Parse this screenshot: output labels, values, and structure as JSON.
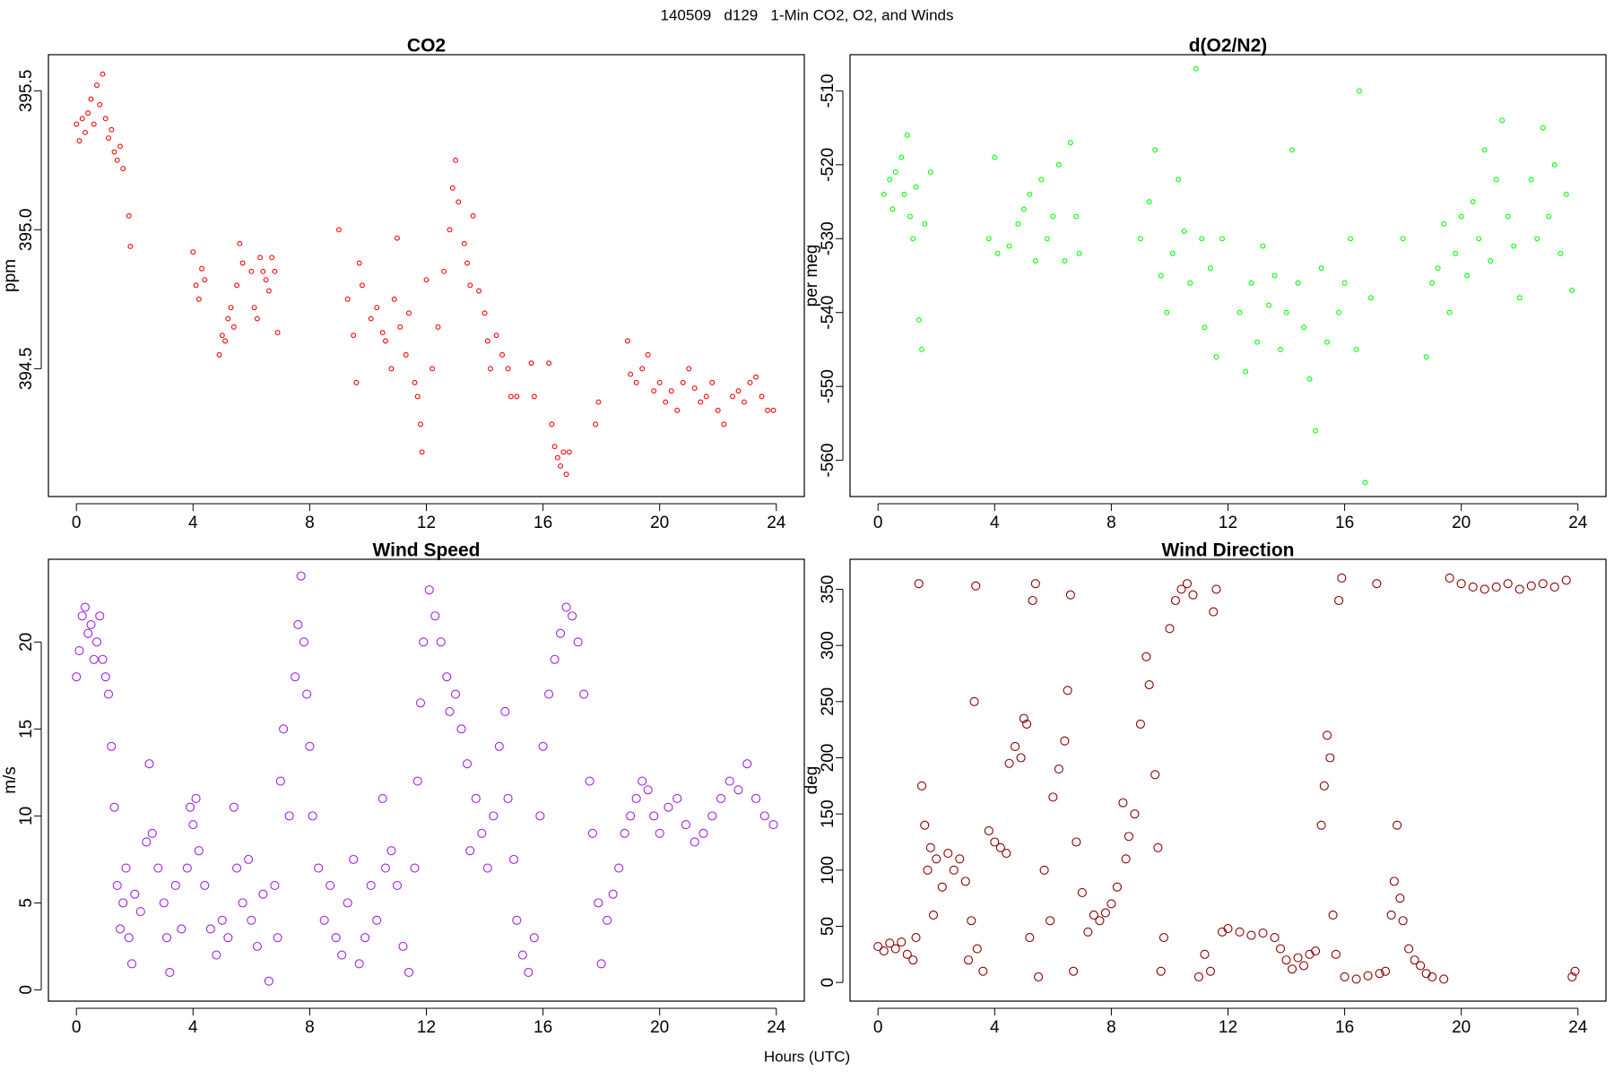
{
  "title": "140509   d129   1-Min CO2, O2, and Winds",
  "x_label": "Hours (UTC)",
  "chart_data": [
    {
      "type": "scatter",
      "title": "CO2",
      "y_label": "ppm",
      "color": "#ff0000",
      "xlim": [
        -0.96,
        24.96
      ],
      "xticks": [
        0,
        4,
        8,
        12,
        16,
        20,
        24
      ],
      "ylim": [
        394.04,
        395.63
      ],
      "yticks": [
        394.5,
        {
          "value": 395,
          "label": "395.0"
        },
        395.5
      ],
      "x": [
        0,
        0.1,
        0.2,
        0.3,
        0.4,
        0.5,
        0.6,
        0.7,
        0.8,
        0.9,
        1.0,
        1.1,
        1.2,
        1.3,
        1.4,
        1.5,
        1.6,
        1.8,
        1.85,
        4.0,
        4.1,
        4.2,
        4.3,
        4.4,
        4.9,
        5.0,
        5.1,
        5.2,
        5.3,
        5.4,
        5.5,
        5.6,
        5.7,
        6.0,
        6.1,
        6.2,
        6.3,
        6.4,
        6.5,
        6.6,
        6.7,
        6.8,
        6.9,
        9.0,
        9.3,
        9.5,
        9.6,
        9.7,
        9.8,
        10.1,
        10.3,
        10.5,
        10.6,
        10.8,
        10.9,
        11.0,
        11.1,
        11.3,
        11.4,
        11.6,
        11.7,
        11.8,
        11.85,
        12.0,
        12.2,
        12.4,
        12.6,
        12.8,
        12.9,
        13.0,
        13.1,
        13.3,
        13.4,
        13.5,
        13.6,
        13.8,
        14.0,
        14.1,
        14.2,
        14.4,
        14.6,
        14.8,
        14.9,
        15.1,
        15.6,
        15.7,
        16.2,
        16.3,
        16.4,
        16.5,
        16.6,
        16.7,
        16.8,
        16.9,
        17.8,
        17.9,
        18.9,
        19.0,
        19.2,
        19.4,
        19.6,
        19.8,
        20.0,
        20.2,
        20.4,
        20.6,
        20.8,
        21.0,
        21.2,
        21.4,
        21.6,
        21.8,
        22.0,
        22.2,
        22.5,
        22.7,
        22.9,
        23.1,
        23.3,
        23.5,
        23.7,
        23.9
      ],
      "values": [
        395.38,
        395.32,
        395.4,
        395.35,
        395.42,
        395.47,
        395.38,
        395.52,
        395.45,
        395.56,
        395.4,
        395.33,
        395.36,
        395.28,
        395.25,
        395.3,
        395.22,
        395.05,
        394.94,
        394.92,
        394.8,
        394.75,
        394.86,
        394.82,
        394.55,
        394.62,
        394.6,
        394.68,
        394.72,
        394.65,
        394.8,
        394.95,
        394.88,
        394.85,
        394.72,
        394.68,
        394.9,
        394.85,
        394.82,
        394.78,
        394.9,
        394.85,
        394.63,
        395.0,
        394.75,
        394.62,
        394.45,
        394.88,
        394.8,
        394.68,
        394.72,
        394.63,
        394.6,
        394.5,
        394.75,
        394.97,
        394.65,
        394.55,
        394.7,
        394.45,
        394.4,
        394.3,
        394.2,
        394.82,
        394.5,
        394.65,
        394.85,
        395.0,
        395.15,
        395.25,
        395.1,
        394.95,
        394.88,
        394.8,
        395.05,
        394.78,
        394.7,
        394.6,
        394.5,
        394.62,
        394.55,
        394.5,
        394.4,
        394.4,
        394.52,
        394.4,
        394.52,
        394.3,
        394.22,
        394.18,
        394.15,
        394.2,
        394.12,
        394.2,
        394.3,
        394.38,
        394.6,
        394.48,
        394.45,
        394.5,
        394.55,
        394.42,
        394.45,
        394.38,
        394.42,
        394.35,
        394.45,
        394.5,
        394.43,
        394.38,
        394.4,
        394.45,
        394.35,
        394.3,
        394.4,
        394.42,
        394.38,
        394.45,
        394.47,
        394.4,
        394.35,
        394.35
      ]
    },
    {
      "type": "scatter",
      "title": "d(O2/N2)",
      "y_label": "per meg",
      "color": "#00ff00",
      "xlim": [
        -0.96,
        24.96
      ],
      "xticks": [
        0,
        4,
        8,
        12,
        16,
        20,
        24
      ],
      "ylim": [
        -564.9,
        -505.1
      ],
      "yticks": [
        -560,
        -550,
        -540,
        -530,
        -520,
        -510
      ],
      "x": [
        0.2,
        0.4,
        0.5,
        0.6,
        0.8,
        0.9,
        1.0,
        1.1,
        1.2,
        1.3,
        1.4,
        1.5,
        1.6,
        1.8,
        3.8,
        4.0,
        4.1,
        4.5,
        4.8,
        5.0,
        5.2,
        5.4,
        5.6,
        5.8,
        6.0,
        6.2,
        6.4,
        6.6,
        6.8,
        6.9,
        9.0,
        9.3,
        9.5,
        9.7,
        9.9,
        10.1,
        10.3,
        10.5,
        10.7,
        10.9,
        11.1,
        11.2,
        11.4,
        11.6,
        11.8,
        12.4,
        12.6,
        12.8,
        13.0,
        13.2,
        13.4,
        13.6,
        13.8,
        14.0,
        14.2,
        14.4,
        14.6,
        14.8,
        15.0,
        15.2,
        15.4,
        15.8,
        16.0,
        16.2,
        16.4,
        16.5,
        16.7,
        16.9,
        18.0,
        18.8,
        19.0,
        19.2,
        19.4,
        19.6,
        19.8,
        20.0,
        20.2,
        20.4,
        20.6,
        20.8,
        21.0,
        21.2,
        21.4,
        21.6,
        21.8,
        22.0,
        22.4,
        22.6,
        22.8,
        23.0,
        23.2,
        23.4,
        23.6,
        23.8
      ],
      "values": [
        -524,
        -522,
        -526,
        -521,
        -519,
        -524,
        -516,
        -527,
        -530,
        -523,
        -541,
        -545,
        -528,
        -521,
        -530,
        -519,
        -532,
        -531,
        -528,
        -526,
        -524,
        -533,
        -522,
        -530,
        -527,
        -520,
        -533,
        -517,
        -527,
        -532,
        -530,
        -525,
        -518,
        -535,
        -540,
        -532,
        -522,
        -529,
        -536,
        -507,
        -530,
        -542,
        -534,
        -546,
        -530,
        -540,
        -548,
        -536,
        -544,
        -531,
        -539,
        -535,
        -545,
        -540,
        -518,
        -536,
        -542,
        -549,
        -556,
        -534,
        -544,
        -540,
        -536,
        -530,
        -545,
        -510,
        -563,
        -538,
        -530,
        -546,
        -536,
        -534,
        -528,
        -540,
        -532,
        -527,
        -535,
        -525,
        -530,
        -518,
        -533,
        -522,
        -514,
        -527,
        -531,
        -538,
        -522,
        -530,
        -515,
        -527,
        -520,
        -532,
        -524,
        -537
      ]
    },
    {
      "type": "scatter",
      "title": "Wind Speed",
      "y_label": "m/s",
      "color": "#a020f0",
      "xlim": [
        -0.96,
        24.96
      ],
      "xticks": [
        0,
        4,
        8,
        12,
        16,
        20,
        24
      ],
      "ylim": [
        -0.65,
        24.76
      ],
      "yticks": [
        0,
        5,
        10,
        15,
        20
      ],
      "x": [
        0,
        0.1,
        0.2,
        0.3,
        0.4,
        0.5,
        0.6,
        0.7,
        0.8,
        0.9,
        1.0,
        1.1,
        1.2,
        1.3,
        1.4,
        1.5,
        1.6,
        1.7,
        1.8,
        1.9,
        2.0,
        2.2,
        2.4,
        2.5,
        2.6,
        2.8,
        3.0,
        3.1,
        3.2,
        3.4,
        3.6,
        3.8,
        3.9,
        4.0,
        4.1,
        4.2,
        4.4,
        4.6,
        4.8,
        5.0,
        5.2,
        5.4,
        5.5,
        5.7,
        5.9,
        6.0,
        6.2,
        6.4,
        6.6,
        6.8,
        6.9,
        7.0,
        7.1,
        7.3,
        7.5,
        7.6,
        7.7,
        7.8,
        7.9,
        8.0,
        8.1,
        8.3,
        8.5,
        8.7,
        8.9,
        9.1,
        9.3,
        9.5,
        9.7,
        9.9,
        10.1,
        10.3,
        10.5,
        10.6,
        10.8,
        11.0,
        11.2,
        11.4,
        11.6,
        11.7,
        11.8,
        11.9,
        12.1,
        12.3,
        12.5,
        12.7,
        12.8,
        13.0,
        13.2,
        13.4,
        13.5,
        13.7,
        13.9,
        14.1,
        14.3,
        14.5,
        14.7,
        14.8,
        15.0,
        15.1,
        15.3,
        15.5,
        15.7,
        15.9,
        16.0,
        16.2,
        16.4,
        16.6,
        16.8,
        17.0,
        17.2,
        17.4,
        17.6,
        17.7,
        17.9,
        18.0,
        18.2,
        18.4,
        18.6,
        18.8,
        19.0,
        19.2,
        19.4,
        19.6,
        19.8,
        20.0,
        20.3,
        20.6,
        20.9,
        21.2,
        21.5,
        21.8,
        22.1,
        22.4,
        22.7,
        23.0,
        23.3,
        23.6,
        23.9
      ],
      "values": [
        18,
        19.5,
        21.5,
        22,
        20.5,
        21,
        19,
        20,
        21.5,
        19,
        18,
        17,
        14,
        10.5,
        6,
        3.5,
        5,
        7,
        3,
        1.5,
        5.5,
        4.5,
        8.5,
        13,
        9,
        7,
        5,
        3,
        1,
        6,
        3.5,
        7,
        10.5,
        9.5,
        11,
        8,
        6,
        3.5,
        2,
        4,
        3,
        10.5,
        7,
        5,
        7.5,
        4,
        2.5,
        5.5,
        0.5,
        6,
        3,
        12,
        15,
        10,
        18,
        21,
        23.8,
        20,
        17,
        14,
        10,
        7,
        4,
        6,
        3,
        2,
        5,
        7.5,
        1.5,
        3,
        6,
        4,
        11,
        7,
        8,
        6,
        2.5,
        1,
        7,
        12,
        16.5,
        20,
        23,
        21.5,
        20,
        18,
        16,
        17,
        15,
        13,
        8,
        11,
        9,
        7,
        10,
        14,
        16,
        11,
        7.5,
        4,
        2,
        1,
        3,
        10,
        14,
        17,
        19,
        20.5,
        22,
        21.5,
        20,
        17,
        12,
        9,
        5,
        1.5,
        4,
        5.5,
        7,
        9,
        10,
        11,
        12,
        11.5,
        10,
        9,
        10.5,
        11,
        9.5,
        8.5,
        9,
        10,
        11,
        12,
        11.5,
        13,
        11,
        10,
        9.5
      ]
    },
    {
      "type": "scatter",
      "title": "Wind Direction",
      "y_label": "deg",
      "color": "#8b0000",
      "xlim": [
        -0.96,
        24.96
      ],
      "xticks": [
        0,
        4,
        8,
        12,
        16,
        20,
        24
      ],
      "ylim": [
        -16.6,
        376.7
      ],
      "yticks": [
        0,
        50,
        100,
        150,
        200,
        250,
        300,
        350
      ],
      "x": [
        0,
        0.2,
        0.4,
        0.6,
        0.8,
        1.0,
        1.2,
        1.3,
        1.4,
        1.5,
        1.6,
        1.7,
        1.8,
        1.9,
        2.0,
        2.2,
        2.4,
        2.6,
        2.8,
        3.0,
        3.1,
        3.2,
        3.3,
        3.35,
        3.4,
        3.6,
        3.8,
        4.0,
        4.2,
        4.4,
        4.5,
        4.7,
        4.9,
        5.0,
        5.1,
        5.2,
        5.3,
        5.4,
        5.5,
        5.7,
        5.9,
        6.0,
        6.2,
        6.4,
        6.5,
        6.6,
        6.7,
        6.8,
        7.0,
        7.2,
        7.4,
        7.6,
        7.8,
        8.0,
        8.2,
        8.4,
        8.5,
        8.6,
        8.8,
        9.0,
        9.2,
        9.3,
        9.5,
        9.6,
        9.7,
        9.8,
        10.0,
        10.2,
        10.4,
        10.6,
        10.8,
        11.0,
        11.2,
        11.4,
        11.5,
        11.6,
        11.8,
        12.0,
        12.4,
        12.8,
        13.2,
        13.6,
        13.8,
        14.0,
        14.2,
        14.4,
        14.6,
        14.8,
        15.0,
        15.2,
        15.3,
        15.4,
        15.5,
        15.6,
        15.7,
        15.8,
        15.9,
        16.0,
        16.4,
        16.8,
        17.1,
        17.2,
        17.4,
        17.6,
        17.7,
        17.8,
        17.9,
        18.0,
        18.2,
        18.4,
        18.6,
        18.8,
        19.0,
        19.4,
        19.6,
        20.0,
        20.4,
        20.8,
        21.2,
        21.6,
        22.0,
        22.4,
        22.8,
        23.2,
        23.6,
        23.8,
        23.9
      ],
      "values": [
        32,
        28,
        35,
        30,
        36,
        25,
        20,
        40,
        355,
        175,
        140,
        100,
        120,
        60,
        110,
        85,
        115,
        100,
        110,
        90,
        20,
        55,
        250,
        353,
        30,
        10,
        135,
        125,
        120,
        115,
        195,
        210,
        200,
        235,
        230,
        40,
        340,
        355,
        5,
        100,
        55,
        165,
        190,
        215,
        260,
        345,
        10,
        125,
        80,
        45,
        60,
        55,
        62,
        70,
        85,
        160,
        110,
        130,
        150,
        230,
        290,
        265,
        185,
        120,
        10,
        40,
        315,
        340,
        350,
        355,
        345,
        5,
        25,
        10,
        330,
        350,
        45,
        48,
        45,
        42,
        44,
        40,
        30,
        20,
        12,
        22,
        15,
        25,
        28,
        140,
        175,
        220,
        200,
        60,
        25,
        340,
        360,
        5,
        3,
        6,
        355,
        8,
        10,
        60,
        90,
        140,
        75,
        55,
        30,
        20,
        15,
        8,
        5,
        3,
        360,
        355,
        352,
        350,
        352,
        355,
        350,
        353,
        355,
        352,
        358,
        5,
        10
      ]
    }
  ]
}
